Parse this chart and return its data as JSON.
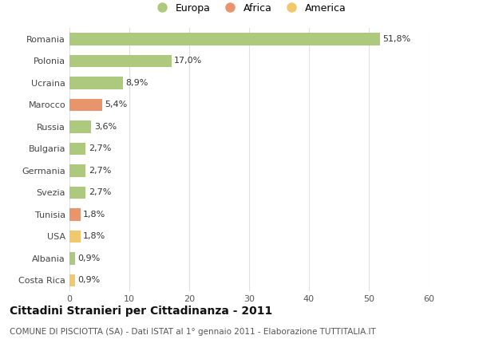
{
  "categories": [
    "Romania",
    "Polonia",
    "Ucraina",
    "Marocco",
    "Russia",
    "Bulgaria",
    "Germania",
    "Svezia",
    "Tunisia",
    "USA",
    "Albania",
    "Costa Rica"
  ],
  "values": [
    51.8,
    17.0,
    8.9,
    5.4,
    3.6,
    2.7,
    2.7,
    2.7,
    1.8,
    1.8,
    0.9,
    0.9
  ],
  "labels": [
    "51,8%",
    "17,0%",
    "8,9%",
    "5,4%",
    "3,6%",
    "2,7%",
    "2,7%",
    "2,7%",
    "1,8%",
    "1,8%",
    "0,9%",
    "0,9%"
  ],
  "colors": [
    "#adc97e",
    "#adc97e",
    "#adc97e",
    "#e8956d",
    "#adc97e",
    "#adc97e",
    "#adc97e",
    "#adc97e",
    "#e8956d",
    "#f0c96e",
    "#adc97e",
    "#f0c96e"
  ],
  "legend_items": [
    {
      "label": "Europa",
      "color": "#adc97e"
    },
    {
      "label": "Africa",
      "color": "#e8956d"
    },
    {
      "label": "America",
      "color": "#f0c96e"
    }
  ],
  "title": "Cittadini Stranieri per Cittadinanza - 2011",
  "subtitle": "COMUNE DI PISCIOTTA (SA) - Dati ISTAT al 1° gennaio 2011 - Elaborazione TUTTITALIA.IT",
  "xlim": [
    0,
    60
  ],
  "xticks": [
    0,
    10,
    20,
    30,
    40,
    50,
    60
  ],
  "background_color": "#ffffff",
  "grid_color": "#e0e0e0",
  "bar_height": 0.55,
  "title_fontsize": 10,
  "subtitle_fontsize": 7.5,
  "label_fontsize": 8,
  "tick_fontsize": 8,
  "legend_fontsize": 9
}
